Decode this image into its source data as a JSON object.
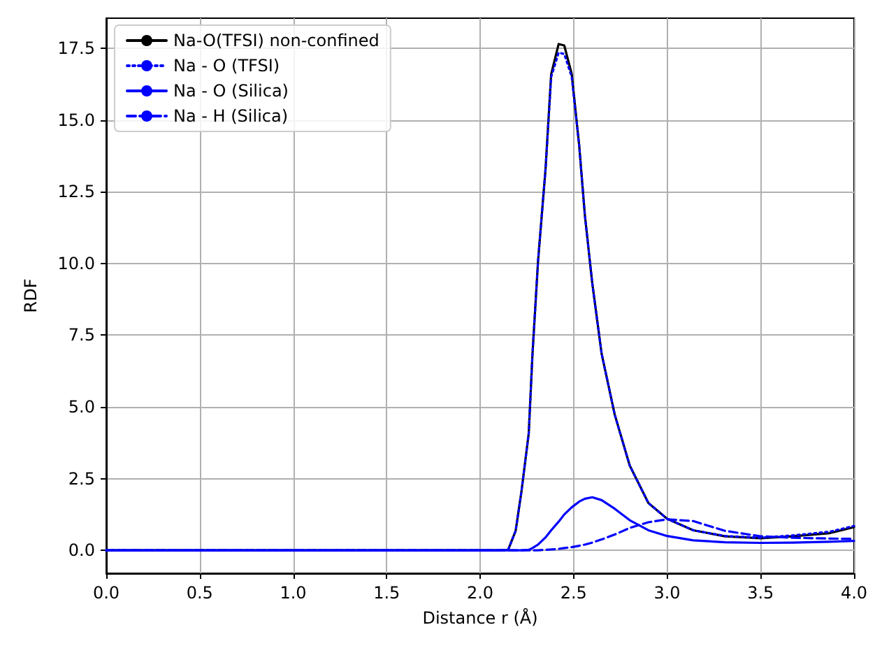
{
  "chart_data": {
    "type": "line",
    "xlabel": "Distance r (Å)",
    "ylabel": "RDF",
    "x": [
      0,
      0.5,
      1,
      1.5,
      2,
      2.1,
      2.15,
      2.19,
      2.22,
      2.26,
      2.28,
      2.31,
      2.35,
      2.38,
      2.42,
      2.45,
      2.49,
      2.53,
      2.56,
      2.6,
      2.65,
      2.72,
      2.8,
      2.9,
      3.0,
      3.14,
      3.31,
      3.5,
      3.67,
      3.87,
      4.0
    ],
    "series": [
      {
        "name": "Na-O(TFSI) non-confined",
        "color": "#000000",
        "line_style": "solid",
        "values": [
          0,
          0,
          0,
          0,
          0,
          0,
          0.02,
          0.68,
          2.0,
          4.08,
          6.84,
          10.1,
          13.3,
          16.6,
          17.65,
          17.6,
          16.6,
          14.1,
          11.7,
          9.3,
          6.85,
          4.73,
          2.96,
          1.65,
          1.1,
          0.7,
          0.49,
          0.42,
          0.49,
          0.6,
          0.81
        ]
      },
      {
        "name": "Na - O (TFSI)",
        "color": "#0000ff",
        "line_style": "dotted",
        "values": [
          0,
          0,
          0,
          0,
          0,
          0,
          0.02,
          0.68,
          2.0,
          4.08,
          6.84,
          10.1,
          13.3,
          16.5,
          17.35,
          17.3,
          16.5,
          14.1,
          11.7,
          9.3,
          6.85,
          4.73,
          2.96,
          1.65,
          1.1,
          0.7,
          0.5,
          0.44,
          0.52,
          0.65,
          0.85
        ]
      },
      {
        "name": "Na - O (Silica)",
        "color": "#0000ff",
        "line_style": "solid",
        "values": [
          0,
          0,
          0,
          0,
          0,
          0,
          0,
          0,
          0,
          0.02,
          0.08,
          0.2,
          0.45,
          0.7,
          1.0,
          1.25,
          1.5,
          1.7,
          1.8,
          1.85,
          1.75,
          1.45,
          1.05,
          0.7,
          0.5,
          0.35,
          0.28,
          0.26,
          0.27,
          0.3,
          0.33
        ]
      },
      {
        "name": "Na - H (Silica)",
        "color": "#0000ff",
        "line_style": "dashed",
        "values": [
          0,
          0,
          0,
          0,
          0,
          0,
          0,
          0,
          0,
          0,
          0,
          0,
          0.02,
          0.03,
          0.05,
          0.08,
          0.11,
          0.16,
          0.2,
          0.27,
          0.38,
          0.55,
          0.78,
          0.98,
          1.08,
          1.02,
          0.68,
          0.49,
          0.44,
          0.41,
          0.4
        ]
      }
    ],
    "xlim": [
      0,
      4
    ],
    "xticks": [
      {
        "value": 0,
        "label": "0.0"
      },
      {
        "value": 0.5,
        "label": "0.5"
      },
      {
        "value": 1,
        "label": "1.0"
      },
      {
        "value": 1.5,
        "label": "1.5"
      },
      {
        "value": 2,
        "label": "2.0"
      },
      {
        "value": 2.5,
        "label": "2.5"
      },
      {
        "value": 3,
        "label": "3.0"
      },
      {
        "value": 3.5,
        "label": "3.5"
      },
      {
        "value": 4,
        "label": "4.0"
      }
    ],
    "ylim": [
      -0.8,
      18.55
    ],
    "yticks": [
      {
        "value": 0,
        "label": "0.0"
      },
      {
        "value": 2.5,
        "label": "2.5"
      },
      {
        "value": 5,
        "label": "5.0"
      },
      {
        "value": 7.5,
        "label": "7.5"
      },
      {
        "value": 10,
        "label": "10.0"
      },
      {
        "value": 12.5,
        "label": "12.5"
      },
      {
        "value": 15,
        "label": "15.0"
      },
      {
        "value": 17.5,
        "label": "17.5"
      }
    ],
    "grid": true,
    "legend": "top left",
    "marker": "none"
  }
}
